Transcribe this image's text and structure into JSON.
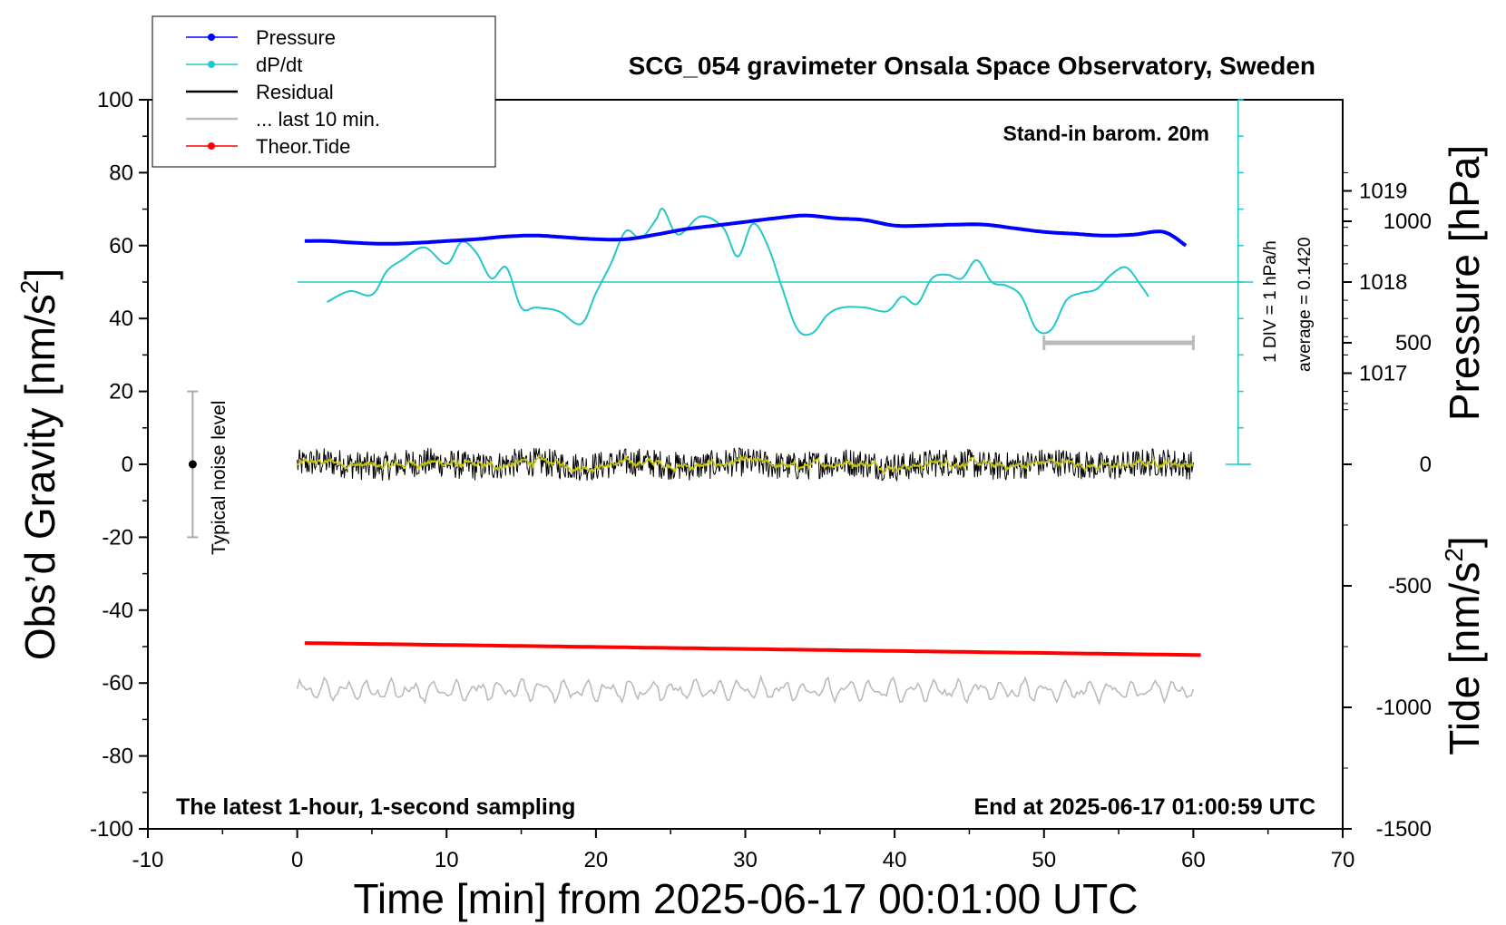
{
  "title": "SCG_054 gravimeter Onsala Space Observatory, Sweden",
  "notes": {
    "barometer": "Stand-in barom. 20m",
    "sampling": "The latest 1-hour, 1-second sampling",
    "end_time": "End at 2025-06-17 01:00:59 UTC",
    "noise_label": "Typical noise level",
    "div_label": "1 DIV = 1 hPa/h",
    "average_label": "average = 0.1420"
  },
  "axes": {
    "xlabel": "Time [min] from 2025-06-17 00:01:00 UTC",
    "ylabel_left": "Obs’d Gravity [nm/s",
    "ylabel_left_sup": "2",
    "ylabel_left_end": "]",
    "ylabel_right_pressure": "Pressure [hPa]",
    "ylabel_right_tide": "Tide [nm/s",
    "ylabel_right_tide_sup": "2",
    "ylabel_right_tide_end": "]"
  },
  "legend": [
    {
      "label": "Pressure",
      "color": "#0000ff",
      "marker": true
    },
    {
      "label": "dP/dt",
      "color": "#22c8c8",
      "marker": true
    },
    {
      "label": "Residual",
      "color": "#000000",
      "marker": false
    },
    {
      "label": "... last 10 min.",
      "color": "#bbbbbb",
      "marker": false
    },
    {
      "label": "Theor.Tide",
      "color": "#ff0000",
      "marker": true
    }
  ],
  "colors": {
    "pressure": "#0000ff",
    "dpdt": "#22c8c8",
    "residual": "#000000",
    "residual_smooth": "#c8c800",
    "tide": "#ff0000",
    "tide_noise": "#bbbbbb",
    "noise_bar": "#aaaaaa"
  },
  "chart_data": {
    "type": "line",
    "title": "SCG_054 gravimeter Onsala Space Observatory, Sweden",
    "xlabel": "Time [min] from 2025-06-17 00:01:00 UTC",
    "ylabel": "Obs’d Gravity [nm/s2]",
    "xlim": [
      -10,
      70
    ],
    "ylim": [
      -100,
      100
    ],
    "x_ticks": [
      -10,
      0,
      10,
      20,
      30,
      40,
      50,
      60,
      70
    ],
    "y_ticks": [
      -100,
      -80,
      -60,
      -40,
      -20,
      0,
      20,
      40,
      60,
      80,
      100
    ],
    "pressure_axis": {
      "label": "Pressure [hPa]",
      "ticks": [
        1017,
        1018,
        1019
      ],
      "ref_y_for_1018": 50,
      "hpa_per_unit": 0.04
    },
    "tide_axis": {
      "label": "Tide [nm/s2]",
      "ticks": [
        -1500,
        -1000,
        -500,
        0,
        500,
        1000
      ],
      "range": [
        -1500,
        1500
      ]
    },
    "grid": false,
    "legend_position": "top-left",
    "noise_level": {
      "x": -7,
      "center": 0,
      "low": -20,
      "high": 20
    },
    "last_10min_bar": {
      "x_start": 50,
      "x_end": 60,
      "tide_value": 500
    },
    "dpdt_reference_y": 50,
    "series": [
      {
        "name": "Pressure",
        "x": [
          0.5,
          2,
          4,
          6,
          8,
          10,
          12,
          14,
          16,
          18,
          20,
          22,
          24,
          26,
          28,
          30,
          32,
          34,
          36,
          38,
          40,
          42,
          44,
          46,
          48,
          50,
          52,
          54,
          56,
          58,
          59.5
        ],
        "values": [
          1018.45,
          1018.45,
          1018.43,
          1018.42,
          1018.43,
          1018.45,
          1018.47,
          1018.5,
          1018.51,
          1018.49,
          1018.47,
          1018.47,
          1018.52,
          1018.58,
          1018.62,
          1018.66,
          1018.7,
          1018.73,
          1018.7,
          1018.68,
          1018.62,
          1018.62,
          1018.63,
          1018.63,
          1018.59,
          1018.55,
          1018.53,
          1018.51,
          1018.52,
          1018.55,
          1018.4
        ]
      },
      {
        "name": "dP/dt",
        "x": [
          2,
          3.5,
          5,
          6,
          7,
          8.5,
          10,
          11,
          12,
          13,
          14,
          15,
          16,
          17.5,
          19,
          20,
          21,
          22,
          23,
          24,
          24.5,
          25.5,
          27,
          28.5,
          29.5,
          30.5,
          31.5,
          32.5,
          33.5,
          34.5,
          35.5,
          36.5,
          38,
          39.5,
          40.5,
          41.5,
          42.5,
          43.5,
          44.5,
          45.5,
          46.5,
          47.5,
          48.5,
          49.5,
          50.5,
          51.5,
          52.5,
          53.5,
          54.5,
          55.5,
          56.5,
          57
        ],
        "values": [
          44.5,
          47.5,
          46.5,
          53,
          56,
          59.5,
          55,
          61,
          58,
          51,
          54,
          43,
          43,
          42,
          38.5,
          47,
          55,
          64,
          62,
          67,
          70,
          63,
          68,
          65,
          57,
          66,
          60,
          48,
          37,
          36,
          41,
          43,
          43,
          42,
          46,
          44,
          51,
          52,
          51,
          56,
          50,
          49,
          46,
          37,
          37,
          45,
          47,
          48,
          52,
          54,
          49,
          46
        ]
      }
    ]
  }
}
